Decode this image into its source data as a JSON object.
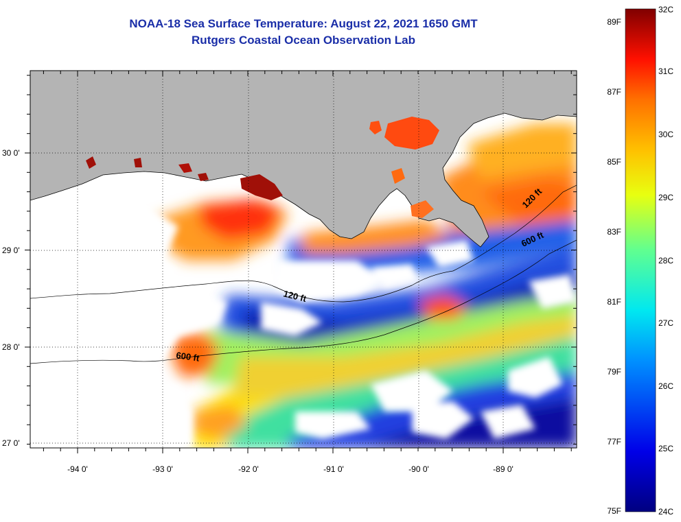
{
  "title": "NOAA-18 Sea Surface Temperature:  August 22, 2021 1650 GMT",
  "subtitle": "Rutgers Coastal Ocean Observation Lab",
  "lat_labels": [
    "30 0'",
    "29 0'",
    "28 0'",
    "27 0'"
  ],
  "lon_labels": [
    "-94 0'",
    "-93 0'",
    "-92 0'",
    "-91 0'",
    "-90 0'",
    "-89 0'"
  ],
  "contour_labels": [
    "120 ft",
    "600 ft",
    "600 ft",
    "120 ft"
  ],
  "colorbar": {
    "f_labels": [
      "89F",
      "87F",
      "85F",
      "83F",
      "81F",
      "79F",
      "77F",
      "75F"
    ],
    "c_labels": [
      "32C",
      "31C",
      "30C",
      "29C",
      "28C",
      "27C",
      "26C",
      "25C",
      "24C"
    ]
  },
  "colors": {
    "land": "#b4b4b4",
    "title": "#1a2ea8"
  }
}
